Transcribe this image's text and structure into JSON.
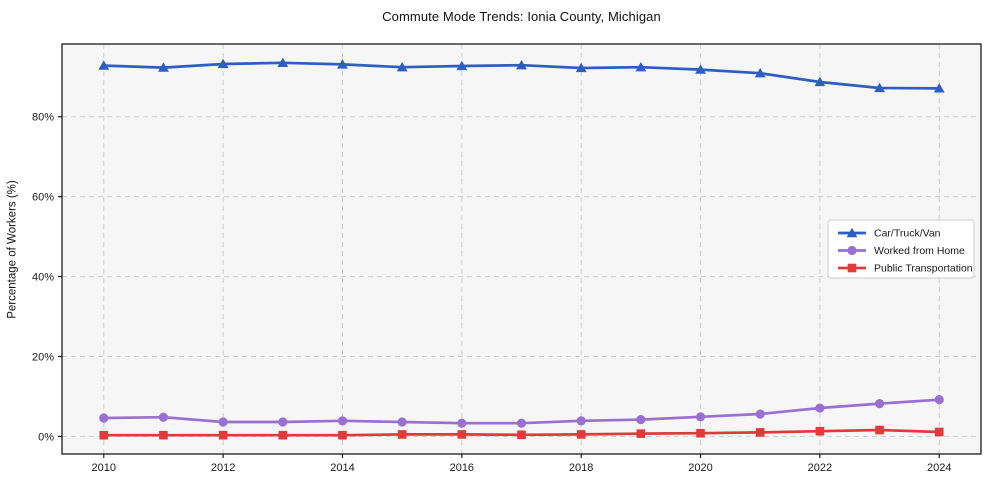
{
  "chart": {
    "title": "Commute Mode Trends: Ionia County, Michigan",
    "ylabel": "Percentage of Workers (%)"
  },
  "chart_data": {
    "type": "line",
    "title": "Commute Mode Trends: Ionia County, Michigan",
    "xlabel": "",
    "ylabel": "Percentage of Workers (%)",
    "x": [
      2010,
      2011,
      2012,
      2013,
      2014,
      2015,
      2016,
      2017,
      2018,
      2019,
      2020,
      2021,
      2022,
      2023,
      2024
    ],
    "series": [
      {
        "name": "Car/Truck/Van",
        "marker": "triangle",
        "color": "#2d5ec4",
        "values": [
          92.8,
          92.3,
          93.2,
          93.5,
          93.1,
          92.4,
          92.7,
          92.9,
          92.2,
          92.4,
          91.8,
          90.9,
          88.7,
          87.2,
          87.1
        ]
      },
      {
        "name": "Worked from Home",
        "marker": "circle",
        "color": "#9a6fd2",
        "values": [
          4.6,
          4.8,
          3.6,
          3.6,
          3.9,
          3.6,
          3.3,
          3.3,
          3.9,
          4.2,
          4.9,
          5.6,
          7.1,
          8.2,
          9.2
        ]
      },
      {
        "name": "Public Transportation",
        "marker": "square",
        "color": "#e03a3a",
        "values": [
          0.3,
          0.3,
          0.3,
          0.3,
          0.3,
          0.5,
          0.5,
          0.4,
          0.5,
          0.7,
          0.8,
          1.0,
          1.3,
          1.6,
          1.1
        ]
      }
    ],
    "xlim": [
      2009.3,
      2024.7
    ],
    "ylim": [
      -4.4,
      98.2
    ],
    "xticks": [
      2010,
      2012,
      2014,
      2016,
      2018,
      2020,
      2022,
      2024
    ],
    "xtick_labels": [
      "2010",
      "2012",
      "2014",
      "2016",
      "2018",
      "2020",
      "2022",
      "2024"
    ],
    "yticks": [
      0,
      20,
      40,
      60,
      80
    ],
    "ytick_labels": [
      "0%",
      "20%",
      "40%",
      "60%",
      "80%"
    ],
    "grid": true,
    "legend_position": "center-right",
    "colors": {
      "plot_bg": "#f6f6f6",
      "grid": "#cdcdcd",
      "spine": "#1a1a1a",
      "tick_label": "#1a1a1a",
      "legend_border": "#cccccc",
      "legend_bg": "#ffffff"
    }
  }
}
